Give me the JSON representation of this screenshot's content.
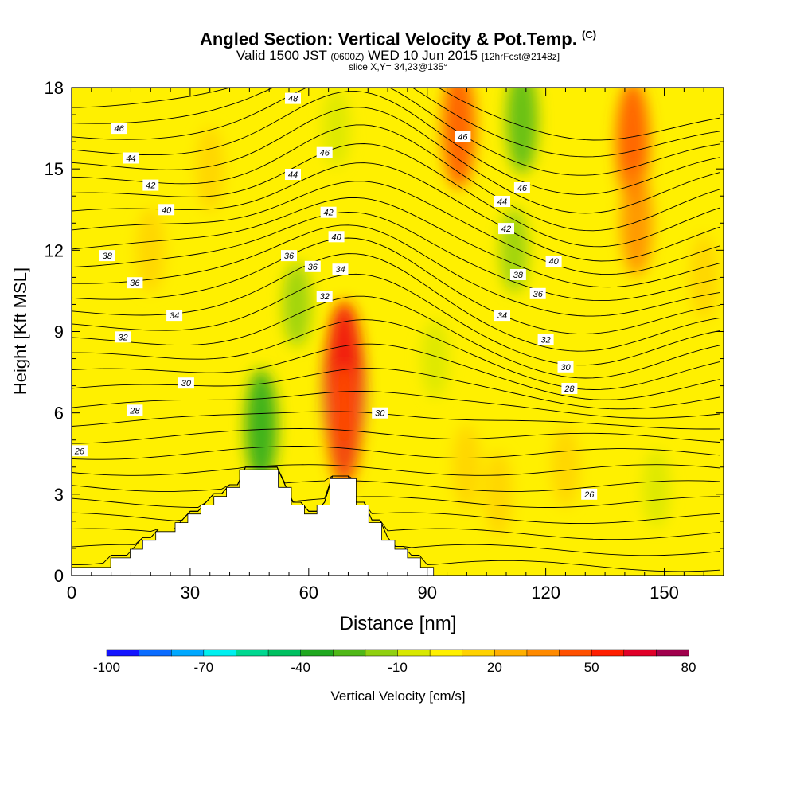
{
  "header": {
    "title": "Angled Section: Vertical Velocity & Pot.Temp.",
    "title_unit": "(C)",
    "subtitle_a": "Valid 1500 JST",
    "subtitle_b": "(0600Z)",
    "subtitle_c": "WED 10 Jun 2015",
    "subtitle_d": "[12hrFcst@2148z]",
    "slice": "slice X,Y= 34,23@135°"
  },
  "chart_data": {
    "type": "heatmap",
    "xlabel": "Distance [nm]",
    "ylabel": "Height [Kft MSL]",
    "xlim": [
      0,
      165
    ],
    "ylim": [
      0,
      18
    ],
    "x_ticks": [
      0,
      30,
      60,
      90,
      120,
      150
    ],
    "y_ticks": [
      0,
      3,
      6,
      9,
      12,
      15,
      18
    ],
    "grid": false,
    "colorbar": {
      "label": "Vertical Velocity [cm/s]",
      "tick_values": [
        -100,
        -70,
        -40,
        -10,
        20,
        50,
        80
      ],
      "tick_labels": [
        "-100",
        "-70",
        "-40",
        "-10",
        "20",
        "50",
        "80"
      ],
      "bin_edges": [
        -100,
        -90,
        -80,
        -70,
        -60,
        -50,
        -40,
        -30,
        -20,
        -10,
        0,
        10,
        20,
        30,
        40,
        50,
        60,
        70,
        80
      ],
      "colors": [
        "#1414ff",
        "#0a6cff",
        "#00a8ff",
        "#00f0f0",
        "#00d890",
        "#00c060",
        "#20a820",
        "#50b818",
        "#90d010",
        "#d8e800",
        "#fff000",
        "#ffd200",
        "#ffb000",
        "#ff8a00",
        "#ff5000",
        "#ff1e00",
        "#e00028",
        "#a0004c"
      ]
    },
    "terrain_kft": [
      [
        0,
        0.3
      ],
      [
        9.9,
        0.3
      ],
      [
        9.9,
        0.65
      ],
      [
        14.8,
        0.65
      ],
      [
        14.8,
        0.97
      ],
      [
        18,
        0.97
      ],
      [
        18,
        1.3
      ],
      [
        21.3,
        1.3
      ],
      [
        21.3,
        1.62
      ],
      [
        26.2,
        1.62
      ],
      [
        26.2,
        1.95
      ],
      [
        29.4,
        1.95
      ],
      [
        29.4,
        2.27
      ],
      [
        32.7,
        2.27
      ],
      [
        32.7,
        2.6
      ],
      [
        36,
        2.6
      ],
      [
        36,
        2.92
      ],
      [
        39.2,
        2.92
      ],
      [
        39.2,
        3.25
      ],
      [
        42.5,
        3.25
      ],
      [
        42.5,
        3.9
      ],
      [
        52.3,
        3.9
      ],
      [
        52.3,
        3.25
      ],
      [
        55.6,
        3.25
      ],
      [
        55.6,
        2.6
      ],
      [
        58.9,
        2.6
      ],
      [
        58.9,
        2.27
      ],
      [
        62.1,
        2.27
      ],
      [
        62.1,
        2.6
      ],
      [
        65.4,
        2.6
      ],
      [
        65.4,
        3.57
      ],
      [
        72,
        3.57
      ],
      [
        72,
        2.6
      ],
      [
        75.2,
        2.6
      ],
      [
        75.2,
        1.95
      ],
      [
        78.5,
        1.95
      ],
      [
        78.5,
        1.3
      ],
      [
        81.8,
        1.3
      ],
      [
        81.8,
        0.97
      ],
      [
        85,
        0.97
      ],
      [
        85,
        0.65
      ],
      [
        88.3,
        0.65
      ],
      [
        88.3,
        0.3
      ],
      [
        91.6,
        0.3
      ],
      [
        91.6,
        0
      ]
    ],
    "vertical_velocity_features": [
      {
        "x": 69,
        "y": 6.8,
        "value": 75
      },
      {
        "x": 69,
        "y": 7.5,
        "value": 55
      },
      {
        "x": 69,
        "y": 5.5,
        "value": 40
      },
      {
        "x": 98,
        "y": 16.5,
        "value": 40
      },
      {
        "x": 142,
        "y": 16,
        "value": 40
      },
      {
        "x": 143,
        "y": 13,
        "value": 30
      },
      {
        "x": 48,
        "y": 5.5,
        "value": -35
      },
      {
        "x": 114,
        "y": 16.8,
        "value": -30
      },
      {
        "x": 112,
        "y": 12,
        "value": -15
      },
      {
        "x": 57,
        "y": 10,
        "value": -15
      },
      {
        "x": 92,
        "y": 8,
        "value": -10
      },
      {
        "x": 148,
        "y": 3.2,
        "value": -10
      },
      {
        "x": 67,
        "y": 16.5,
        "value": -10
      },
      {
        "x": 35,
        "y": 15,
        "value": 15
      },
      {
        "x": 20,
        "y": 12,
        "value": 15
      },
      {
        "x": 100,
        "y": 4,
        "value": 15
      },
      {
        "x": 108,
        "y": 3,
        "value": 15
      },
      {
        "x": 160,
        "y": 11,
        "value": 15
      },
      {
        "x": 125,
        "y": 4,
        "value": 12
      }
    ],
    "potential_temperature_labels": [
      {
        "x": 2,
        "y": 4.6,
        "label": "26"
      },
      {
        "x": 131,
        "y": 3.0,
        "label": "26"
      },
      {
        "x": 16,
        "y": 6.1,
        "label": "28"
      },
      {
        "x": 126,
        "y": 6.9,
        "label": "28"
      },
      {
        "x": 29,
        "y": 7.1,
        "label": "30"
      },
      {
        "x": 78,
        "y": 6.0,
        "label": "30"
      },
      {
        "x": 125,
        "y": 7.7,
        "label": "30"
      },
      {
        "x": 13,
        "y": 8.8,
        "label": "32"
      },
      {
        "x": 64,
        "y": 10.3,
        "label": "32"
      },
      {
        "x": 120,
        "y": 8.7,
        "label": "32"
      },
      {
        "x": 26,
        "y": 9.6,
        "label": "34"
      },
      {
        "x": 68,
        "y": 11.3,
        "label": "34"
      },
      {
        "x": 109,
        "y": 9.6,
        "label": "34"
      },
      {
        "x": 16,
        "y": 10.8,
        "label": "36"
      },
      {
        "x": 55,
        "y": 11.8,
        "label": "36"
      },
      {
        "x": 61,
        "y": 11.4,
        "label": "36"
      },
      {
        "x": 118,
        "y": 10.4,
        "label": "36"
      },
      {
        "x": 9,
        "y": 11.8,
        "label": "38"
      },
      {
        "x": 113,
        "y": 11.1,
        "label": "38"
      },
      {
        "x": 24,
        "y": 13.5,
        "label": "40"
      },
      {
        "x": 67,
        "y": 12.5,
        "label": "40"
      },
      {
        "x": 122,
        "y": 11.6,
        "label": "40"
      },
      {
        "x": 20,
        "y": 14.4,
        "label": "42"
      },
      {
        "x": 65,
        "y": 13.4,
        "label": "42"
      },
      {
        "x": 110,
        "y": 12.8,
        "label": "42"
      },
      {
        "x": 15,
        "y": 15.4,
        "label": "44"
      },
      {
        "x": 56,
        "y": 14.8,
        "label": "44"
      },
      {
        "x": 109,
        "y": 13.8,
        "label": "44"
      },
      {
        "x": 12,
        "y": 16.5,
        "label": "46"
      },
      {
        "x": 64,
        "y": 15.6,
        "label": "46"
      },
      {
        "x": 99,
        "y": 16.2,
        "label": "46"
      },
      {
        "x": 114,
        "y": 14.3,
        "label": "46"
      },
      {
        "x": 56,
        "y": 17.6,
        "label": "48"
      }
    ]
  }
}
